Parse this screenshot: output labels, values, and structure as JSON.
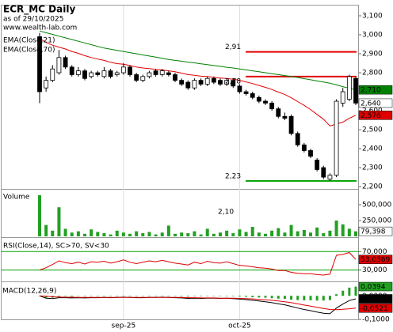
{
  "chart_data": [
    {
      "type": "candlestick",
      "title": "ECR_MC Daily",
      "subtitle": "as of 29/10/2025",
      "source": "www.wealth-lab.com",
      "ylim": [
        2192,
        3150
      ],
      "yticks": [
        {
          "value": 3100,
          "label": "3,100"
        },
        {
          "value": 3000,
          "label": "3,000"
        },
        {
          "value": 2900,
          "label": "2,900"
        },
        {
          "value": 2800,
          "label": "2,800"
        },
        {
          "value": 2700,
          "label": "2,700"
        },
        {
          "value": 2600,
          "label": "2,600"
        },
        {
          "value": 2500,
          "label": "2,500"
        },
        {
          "value": 2400,
          "label": "2,400"
        },
        {
          "value": 2300,
          "label": "2,300"
        },
        {
          "value": 2200,
          "label": "2,200"
        }
      ],
      "xticks": [
        {
          "value": 13,
          "label": "sep-25"
        },
        {
          "value": 31,
          "label": "oct-25"
        }
      ],
      "open": [
        2990,
        2720,
        2760,
        2800,
        2880,
        2830,
        2790,
        2810,
        2780,
        2800,
        2780,
        2810,
        2790,
        2800,
        2830,
        2790,
        2760,
        2780,
        2810,
        2790,
        2800,
        2790,
        2760,
        2750,
        2720,
        2760,
        2740,
        2770,
        2760,
        2740,
        2760,
        2730,
        2700,
        2690,
        2670,
        2650,
        2640,
        2610,
        2570,
        2570,
        2480,
        2420,
        2390,
        2340,
        2300,
        2240,
        2260,
        2640,
        2660,
        2770
      ],
      "high": [
        3010,
        2780,
        2840,
        2920,
        2890,
        2840,
        2830,
        2820,
        2810,
        2810,
        2830,
        2820,
        2810,
        2850,
        2840,
        2800,
        2790,
        2810,
        2820,
        2820,
        2810,
        2800,
        2770,
        2760,
        2770,
        2770,
        2780,
        2780,
        2770,
        2770,
        2770,
        2740,
        2710,
        2700,
        2680,
        2660,
        2650,
        2620,
        2590,
        2580,
        2490,
        2430,
        2400,
        2350,
        2310,
        2270,
        2660,
        2720,
        2790,
        2780
      ],
      "low": [
        2640,
        2700,
        2750,
        2790,
        2820,
        2780,
        2780,
        2760,
        2770,
        2780,
        2770,
        2770,
        2780,
        2790,
        2780,
        2750,
        2750,
        2770,
        2780,
        2780,
        2780,
        2750,
        2730,
        2710,
        2710,
        2730,
        2730,
        2740,
        2730,
        2730,
        2720,
        2690,
        2680,
        2660,
        2640,
        2630,
        2600,
        2560,
        2550,
        2470,
        2410,
        2380,
        2350,
        2280,
        2240,
        2230,
        2250,
        2620,
        2650,
        2630
      ],
      "close": [
        2700,
        2760,
        2820,
        2880,
        2830,
        2790,
        2810,
        2770,
        2800,
        2790,
        2810,
        2780,
        2800,
        2830,
        2790,
        2760,
        2780,
        2800,
        2790,
        2810,
        2790,
        2760,
        2740,
        2720,
        2760,
        2740,
        2770,
        2750,
        2740,
        2760,
        2730,
        2700,
        2690,
        2670,
        2650,
        2640,
        2610,
        2570,
        2560,
        2480,
        2420,
        2390,
        2360,
        2290,
        2250,
        2260,
        2650,
        2700,
        2780,
        2640
      ],
      "last_label": "2,640",
      "series": [
        {
          "name": "EMA(Close,21)",
          "color": "#e00000",
          "last_label": "2,576",
          "values": [
            2980,
            2960,
            2945,
            2935,
            2925,
            2912,
            2902,
            2890,
            2880,
            2872,
            2865,
            2855,
            2848,
            2845,
            2838,
            2830,
            2825,
            2822,
            2818,
            2815,
            2810,
            2805,
            2798,
            2790,
            2787,
            2782,
            2780,
            2776,
            2772,
            2770,
            2766,
            2760,
            2752,
            2743,
            2733,
            2723,
            2712,
            2698,
            2686,
            2668,
            2648,
            2628,
            2606,
            2580,
            2555,
            2520,
            2530,
            2540,
            2560,
            2576
          ]
        },
        {
          "name": "EMA(Close,70)",
          "color": "#008000",
          "last_label": "2,710",
          "values": [
            3020,
            3011,
            3002,
            2993,
            2984,
            2975,
            2966,
            2957,
            2948,
            2939,
            2930,
            2924,
            2918,
            2912,
            2906,
            2900,
            2894,
            2888,
            2882,
            2876,
            2870,
            2865,
            2861,
            2856,
            2852,
            2847,
            2843,
            2838,
            2834,
            2829,
            2825,
            2820,
            2815,
            2810,
            2805,
            2800,
            2795,
            2790,
            2785,
            2780,
            2775,
            2769,
            2763,
            2757,
            2751,
            2745,
            2736,
            2727,
            2718,
            2710
          ]
        }
      ],
      "levels": [
        {
          "value": 2910,
          "label": "2,91",
          "color": "#e00000"
        },
        {
          "value": 2780,
          "label": "2,78",
          "color": "#e00000"
        },
        {
          "value": 2230,
          "label": "2,23",
          "color": "#00a000"
        }
      ]
    },
    {
      "type": "bar",
      "title": "Volume",
      "color": "#22a022",
      "note": "2,10",
      "ylim": [
        0,
        725000
      ],
      "yticks": [
        {
          "value": 500000,
          "label": "500,000"
        },
        {
          "value": 250000,
          "label": "250,000"
        }
      ],
      "values": [
        650000,
        180000,
        90000,
        460000,
        120000,
        60000,
        80000,
        40000,
        110000,
        70000,
        50000,
        30000,
        90000,
        60000,
        40000,
        80000,
        50000,
        70000,
        30000,
        60000,
        170000,
        40000,
        60000,
        50000,
        80000,
        30000,
        120000,
        40000,
        60000,
        90000,
        50000,
        110000,
        70000,
        150000,
        60000,
        40000,
        90000,
        130000,
        60000,
        180000,
        80000,
        100000,
        60000,
        140000,
        50000,
        90000,
        250000,
        190000,
        120000,
        79398
      ],
      "last_label": "79,398"
    },
    {
      "type": "line",
      "title": "RSI(Close,14), SC>70, SV<30",
      "ylim": [
        7,
        98
      ],
      "yticks": [
        {
          "value": 70,
          "label": "70,000"
        },
        {
          "value": 30,
          "label": "30,000"
        }
      ],
      "band_color": "#00a000",
      "series": [
        {
          "color": "#e00000",
          "last_label": "53,0369",
          "values": [
            30,
            35,
            42,
            50,
            46,
            44,
            47,
            43,
            48,
            47,
            49,
            45,
            48,
            52,
            47,
            44,
            47,
            50,
            48,
            51,
            48,
            45,
            43,
            41,
            47,
            44,
            49,
            46,
            45,
            48,
            44,
            40,
            39,
            37,
            35,
            34,
            32,
            29,
            29,
            25,
            23,
            22,
            22,
            20,
            19,
            21,
            62,
            64,
            68,
            53.0369
          ]
        }
      ]
    },
    {
      "type": "macd",
      "title": "MACD(12,26,9)",
      "ylim": [
        -0.1,
        0.058
      ],
      "yticks": [
        {
          "value": 0,
          "label": "0,0000"
        },
        {
          "value": -0.1,
          "label": "-0,1000"
        }
      ],
      "hist_color": "#22a022",
      "hist_label": "0,0394",
      "hist": [
        0,
        -0.008,
        -0.008,
        -0.003,
        -0.002,
        -0.003,
        -0.001,
        -0.002,
        -0.001,
        -0.001,
        0,
        -0.001,
        0,
        0.001,
        0,
        -0.001,
        -0.001,
        0,
        0,
        0.001,
        0,
        -0.001,
        -0.002,
        -0.003,
        -0.002,
        -0.002,
        -0.001,
        -0.001,
        -0.001,
        0,
        -0.002,
        -0.003,
        -0.004,
        -0.006,
        -0.007,
        -0.008,
        -0.01,
        -0.012,
        -0.013,
        -0.016,
        -0.018,
        -0.019,
        -0.019,
        -0.02,
        -0.02,
        -0.018,
        0.007,
        0.022,
        0.035,
        0.0394
      ],
      "series": [
        {
          "color": "#000000",
          "last_label": "-0,0126",
          "values": [
            0,
            -0.01,
            -0.012,
            -0.008,
            -0.008,
            -0.009,
            -0.008,
            -0.009,
            -0.008,
            -0.008,
            -0.007,
            -0.008,
            -0.007,
            -0.006,
            -0.007,
            -0.008,
            -0.008,
            -0.007,
            -0.007,
            -0.006,
            -0.007,
            -0.008,
            -0.009,
            -0.011,
            -0.01,
            -0.011,
            -0.01,
            -0.01,
            -0.011,
            -0.01,
            -0.012,
            -0.014,
            -0.016,
            -0.019,
            -0.022,
            -0.025,
            -0.029,
            -0.034,
            -0.038,
            -0.045,
            -0.052,
            -0.058,
            -0.063,
            -0.069,
            -0.074,
            -0.076,
            -0.052,
            -0.035,
            -0.02,
            -0.0126
          ]
        },
        {
          "color": "#e00000",
          "last_label": "-0,0521",
          "values": [
            0,
            -0.002,
            -0.004,
            -0.005,
            -0.006,
            -0.006,
            -0.007,
            -0.007,
            -0.007,
            -0.007,
            -0.007,
            -0.007,
            -0.007,
            -0.007,
            -0.007,
            -0.007,
            -0.007,
            -0.007,
            -0.007,
            -0.007,
            -0.007,
            -0.007,
            -0.007,
            -0.008,
            -0.008,
            -0.009,
            -0.009,
            -0.009,
            -0.01,
            -0.01,
            -0.01,
            -0.011,
            -0.012,
            -0.013,
            -0.015,
            -0.017,
            -0.019,
            -0.022,
            -0.025,
            -0.029,
            -0.034,
            -0.039,
            -0.044,
            -0.049,
            -0.054,
            -0.058,
            -0.059,
            -0.057,
            -0.055,
            -0.0521
          ]
        }
      ]
    }
  ]
}
